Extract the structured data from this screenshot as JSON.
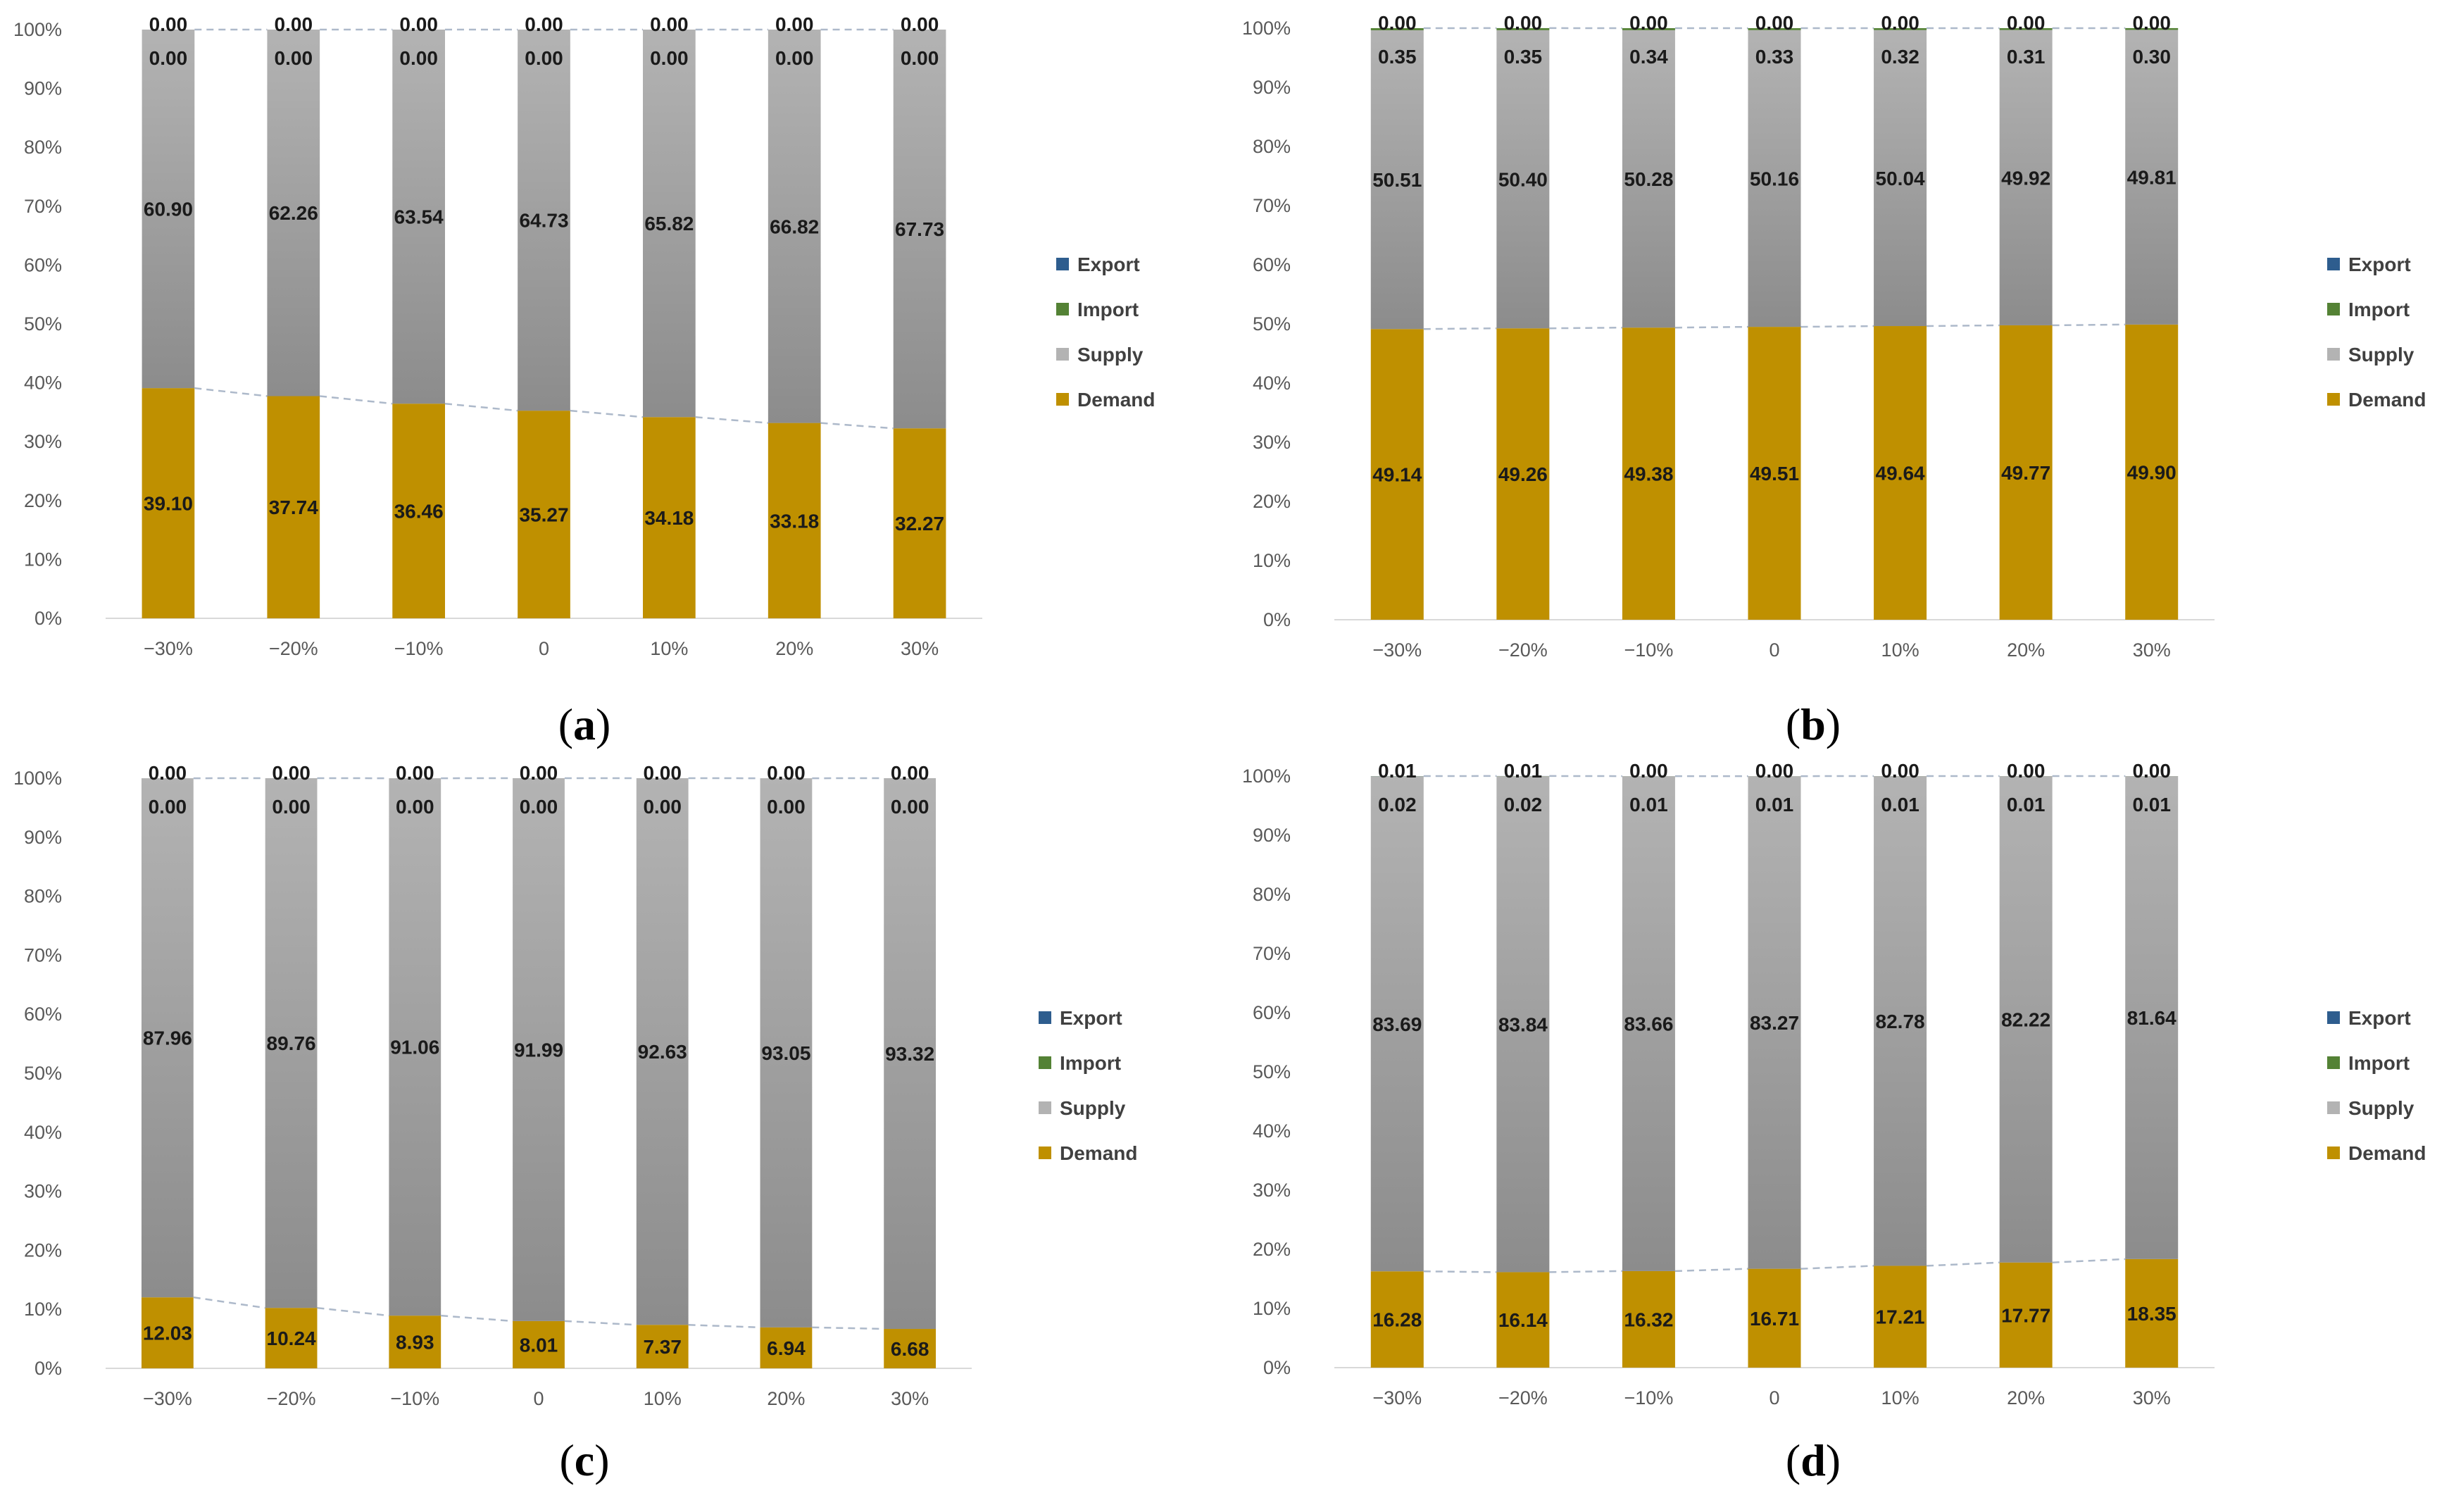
{
  "chart_data": [
    {
      "panel": "a",
      "type": "bar",
      "stacked": true,
      "caption_letter": "a",
      "ylim": [
        0,
        100
      ],
      "yticks": [
        "0%",
        "10%",
        "20%",
        "30%",
        "40%",
        "50%",
        "60%",
        "70%",
        "80%",
        "90%",
        "100%"
      ],
      "categories": [
        "−30%",
        "−20%",
        "−10%",
        "0",
        "10%",
        "20%",
        "30%"
      ],
      "series": [
        {
          "name": "Demand",
          "values": [
            39.1,
            37.74,
            36.46,
            35.27,
            34.18,
            33.18,
            32.27
          ],
          "labels": [
            "39.10",
            "37.74",
            "36.46",
            "35.27",
            "34.18",
            "33.18",
            "32.27"
          ]
        },
        {
          "name": "Supply",
          "values": [
            60.9,
            62.26,
            63.54,
            64.73,
            65.82,
            66.82,
            67.73
          ],
          "labels": [
            "60.90",
            "62.26",
            "63.54",
            "64.73",
            "65.82",
            "66.82",
            "67.73"
          ]
        },
        {
          "name": "Import",
          "values": [
            0,
            0,
            0,
            0,
            0,
            0,
            0
          ],
          "labels": [
            "0.00",
            "0.00",
            "0.00",
            "0.00",
            "0.00",
            "0.00",
            "0.00"
          ]
        },
        {
          "name": "Export",
          "values": [
            0,
            0,
            0,
            0,
            0,
            0,
            0
          ],
          "labels": [
            "0.00",
            "0.00",
            "0.00",
            "0.00",
            "0.00",
            "0.00",
            "0.00"
          ]
        }
      ],
      "legend": [
        "Export",
        "Import",
        "Supply",
        "Demand"
      ],
      "legend_position": "right"
    },
    {
      "panel": "b",
      "type": "bar",
      "stacked": true,
      "caption_letter": "b",
      "ylim": [
        0,
        100
      ],
      "yticks": [
        "0%",
        "10%",
        "20%",
        "30%",
        "40%",
        "50%",
        "60%",
        "70%",
        "80%",
        "90%",
        "100%"
      ],
      "categories": [
        "−30%",
        "−20%",
        "−10%",
        "0",
        "10%",
        "20%",
        "30%"
      ],
      "series": [
        {
          "name": "Demand",
          "values": [
            49.14,
            49.26,
            49.38,
            49.51,
            49.64,
            49.77,
            49.9
          ],
          "labels": [
            "49.14",
            "49.26",
            "49.38",
            "49.51",
            "49.64",
            "49.77",
            "49.90"
          ]
        },
        {
          "name": "Supply",
          "values": [
            50.51,
            50.4,
            50.28,
            50.16,
            50.04,
            49.92,
            49.81
          ],
          "labels": [
            "50.51",
            "50.40",
            "50.28",
            "50.16",
            "50.04",
            "49.92",
            "49.81"
          ]
        },
        {
          "name": "Import",
          "values": [
            0.35,
            0.35,
            0.34,
            0.33,
            0.32,
            0.31,
            0.3
          ],
          "labels": [
            "0.35",
            "0.35",
            "0.34",
            "0.33",
            "0.32",
            "0.31",
            "0.30"
          ]
        },
        {
          "name": "Export",
          "values": [
            0,
            0,
            0,
            0,
            0,
            0,
            0
          ],
          "labels": [
            "0.00",
            "0.00",
            "0.00",
            "0.00",
            "0.00",
            "0.00",
            "0.00"
          ]
        }
      ],
      "legend": [
        "Export",
        "Import",
        "Supply",
        "Demand"
      ],
      "legend_position": "right"
    },
    {
      "panel": "c",
      "type": "bar",
      "stacked": true,
      "caption_letter": "c",
      "ylim": [
        0,
        100
      ],
      "yticks": [
        "0%",
        "10%",
        "20%",
        "30%",
        "40%",
        "50%",
        "60%",
        "70%",
        "80%",
        "90%",
        "100%"
      ],
      "categories": [
        "−30%",
        "−20%",
        "−10%",
        "0",
        "10%",
        "20%",
        "30%"
      ],
      "series": [
        {
          "name": "Demand",
          "values": [
            12.03,
            10.24,
            8.93,
            8.01,
            7.37,
            6.94,
            6.68
          ],
          "labels": [
            "12.03",
            "10.24",
            "8.93",
            "8.01",
            "7.37",
            "6.94",
            "6.68"
          ]
        },
        {
          "name": "Supply",
          "values": [
            87.96,
            89.76,
            91.06,
            91.99,
            92.63,
            93.05,
            93.32
          ],
          "labels": [
            "87.96",
            "89.76",
            "91.06",
            "91.99",
            "92.63",
            "93.05",
            "93.32"
          ]
        },
        {
          "name": "Import",
          "values": [
            0,
            0,
            0,
            0,
            0,
            0,
            0
          ],
          "labels": [
            "0.00",
            "0.00",
            "0.00",
            "0.00",
            "0.00",
            "0.00",
            "0.00"
          ]
        },
        {
          "name": "Export",
          "values": [
            0,
            0,
            0,
            0,
            0,
            0,
            0
          ],
          "labels": [
            "0.00",
            "0.00",
            "0.00",
            "0.00",
            "0.00",
            "0.00",
            "0.00"
          ]
        }
      ],
      "legend": [
        "Export",
        "Import",
        "Supply",
        "Demand"
      ],
      "legend_position": "right"
    },
    {
      "panel": "d",
      "type": "bar",
      "stacked": true,
      "caption_letter": "d",
      "ylim": [
        0,
        100
      ],
      "yticks": [
        "0%",
        "10%",
        "20%",
        "30%",
        "40%",
        "50%",
        "60%",
        "70%",
        "80%",
        "90%",
        "100%"
      ],
      "categories": [
        "−30%",
        "−20%",
        "−10%",
        "0",
        "10%",
        "20%",
        "30%"
      ],
      "series": [
        {
          "name": "Demand",
          "values": [
            16.28,
            16.14,
            16.32,
            16.71,
            17.21,
            17.77,
            18.35
          ],
          "labels": [
            "16.28",
            "16.14",
            "16.32",
            "16.71",
            "17.21",
            "17.77",
            "18.35"
          ]
        },
        {
          "name": "Supply",
          "values": [
            83.69,
            83.84,
            83.66,
            83.27,
            82.78,
            82.22,
            81.64
          ],
          "labels": [
            "83.69",
            "83.84",
            "83.66",
            "83.27",
            "82.78",
            "82.22",
            "81.64"
          ]
        },
        {
          "name": "Import",
          "values": [
            0.02,
            0.02,
            0.01,
            0.01,
            0.01,
            0.01,
            0.01
          ],
          "labels": [
            "0.02",
            "0.02",
            "0.01",
            "0.01",
            "0.01",
            "0.01",
            "0.01"
          ]
        },
        {
          "name": "Export",
          "values": [
            0.01,
            0.01,
            0,
            0,
            0,
            0,
            0
          ],
          "labels": [
            "0.01",
            "0.01",
            "0.00",
            "0.00",
            "0.00",
            "0.00",
            "0.00"
          ]
        }
      ],
      "legend": [
        "Export",
        "Import",
        "Supply",
        "Demand"
      ],
      "legend_position": "right"
    }
  ],
  "colors": {
    "Demand": "#bf9000",
    "Supply_top": "#b3b3b3",
    "Supply_bottom": "#8c8c8c",
    "Import": "#548235",
    "Export": "#2e5d8e",
    "trend_line": "#adb9ca",
    "axis": "#d9d9d9"
  }
}
